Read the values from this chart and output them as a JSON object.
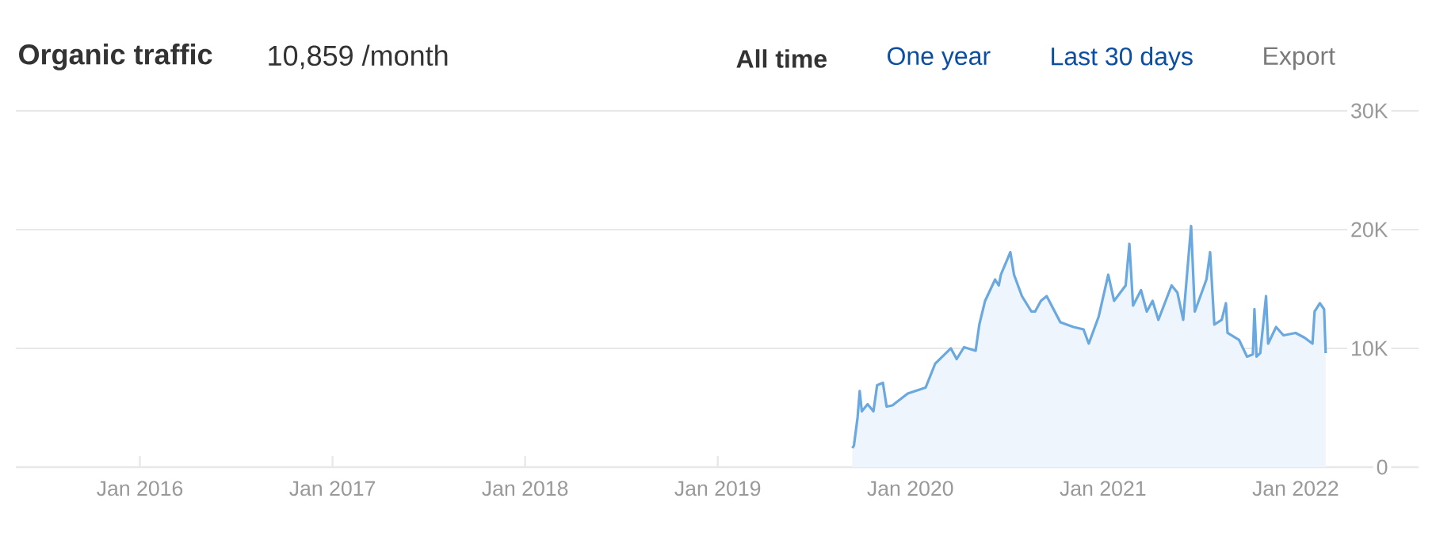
{
  "chart_data": {
    "type": "area",
    "title": "Organic traffic",
    "subtitle": "10,859 /month",
    "annotations": [
      "All time",
      "One year",
      "Last 30 days",
      "Export"
    ],
    "xlim": [
      "2015-05-11",
      "2022-08-22"
    ],
    "xticks": [
      {
        "value": "2016-01-01",
        "label": "Jan 2016"
      },
      {
        "value": "2017-01-01",
        "label": "Jan 2017"
      },
      {
        "value": "2018-01-01",
        "label": "Jan 2018"
      },
      {
        "value": "2019-01-01",
        "label": "Jan 2019"
      },
      {
        "value": "2020-01-01",
        "label": "Jan 2020"
      },
      {
        "value": "2021-01-01",
        "label": "Jan 2021"
      },
      {
        "value": "2022-01-01",
        "label": "Jan 2022"
      }
    ],
    "ylim": [
      0,
      30000
    ],
    "yticks": [
      0,
      {
        "value": 10000,
        "label": "10K"
      },
      {
        "value": 20000,
        "label": "20K"
      },
      {
        "value": 30000,
        "label": "30K"
      }
    ],
    "grid": "y",
    "marker": "none",
    "line_style": "solid",
    "series": [
      {
        "color": "#6aa8e0",
        "x": [
          "2019-09-13",
          "2019-09-16",
          "2019-09-23",
          "2019-09-27",
          "2019-10-01",
          "2019-10-12",
          "2019-10-23",
          "2019-10-30",
          "2019-11-10",
          "2019-11-17",
          "2019-11-28",
          "2019-12-27",
          "2020-01-30",
          "2020-02-17",
          "2020-03-18",
          "2020-03-29",
          "2020-04-12",
          "2020-05-04",
          "2020-05-11",
          "2020-05-22",
          "2020-06-10",
          "2020-06-17",
          "2020-06-21",
          "2020-07-09",
          "2020-07-16",
          "2020-07-31",
          "2020-08-18",
          "2020-08-25",
          "2020-09-05",
          "2020-09-16",
          "2020-10-12",
          "2020-11-06",
          "2020-11-25",
          "2020-12-05",
          "2020-12-24",
          "2021-01-11",
          "2021-01-22",
          "2021-02-13",
          "2021-02-20",
          "2021-02-27",
          "2021-03-14",
          "2021-03-25",
          "2021-04-05",
          "2021-04-16",
          "2021-05-11",
          "2021-05-22",
          "2021-06-02",
          "2021-06-17",
          "2021-06-24",
          "2021-07-16",
          "2021-07-23",
          "2021-07-31",
          "2021-08-14",
          "2021-08-22",
          "2021-08-25",
          "2021-09-16",
          "2021-10-01",
          "2021-10-12",
          "2021-10-15",
          "2021-10-19",
          "2021-10-26",
          "2021-11-06",
          "2021-11-10",
          "2021-11-25",
          "2021-12-09",
          "2022-01-01",
          "2022-01-18",
          "2022-02-02",
          "2022-02-06",
          "2022-02-16",
          "2022-02-24",
          "2022-02-27"
        ],
        "values": [
          1600,
          1800,
          4200,
          6400,
          4700,
          5300,
          4700,
          6900,
          7100,
          5100,
          5200,
          6200,
          6700,
          8700,
          10000,
          9100,
          10100,
          9800,
          12000,
          14000,
          15800,
          15300,
          16200,
          18100,
          16200,
          14400,
          13100,
          13100,
          14000,
          14400,
          12200,
          11800,
          11600,
          10400,
          12700,
          16200,
          14000,
          15300,
          18800,
          13600,
          14900,
          13100,
          14000,
          12400,
          15300,
          14700,
          12400,
          20300,
          13100,
          15800,
          18100,
          12000,
          12400,
          13800,
          11300,
          10700,
          9300,
          9500,
          13300,
          9300,
          9600,
          14400,
          10400,
          11800,
          11100,
          11300,
          10900,
          10400,
          13100,
          13800,
          13300,
          9600
        ]
      }
    ]
  }
}
